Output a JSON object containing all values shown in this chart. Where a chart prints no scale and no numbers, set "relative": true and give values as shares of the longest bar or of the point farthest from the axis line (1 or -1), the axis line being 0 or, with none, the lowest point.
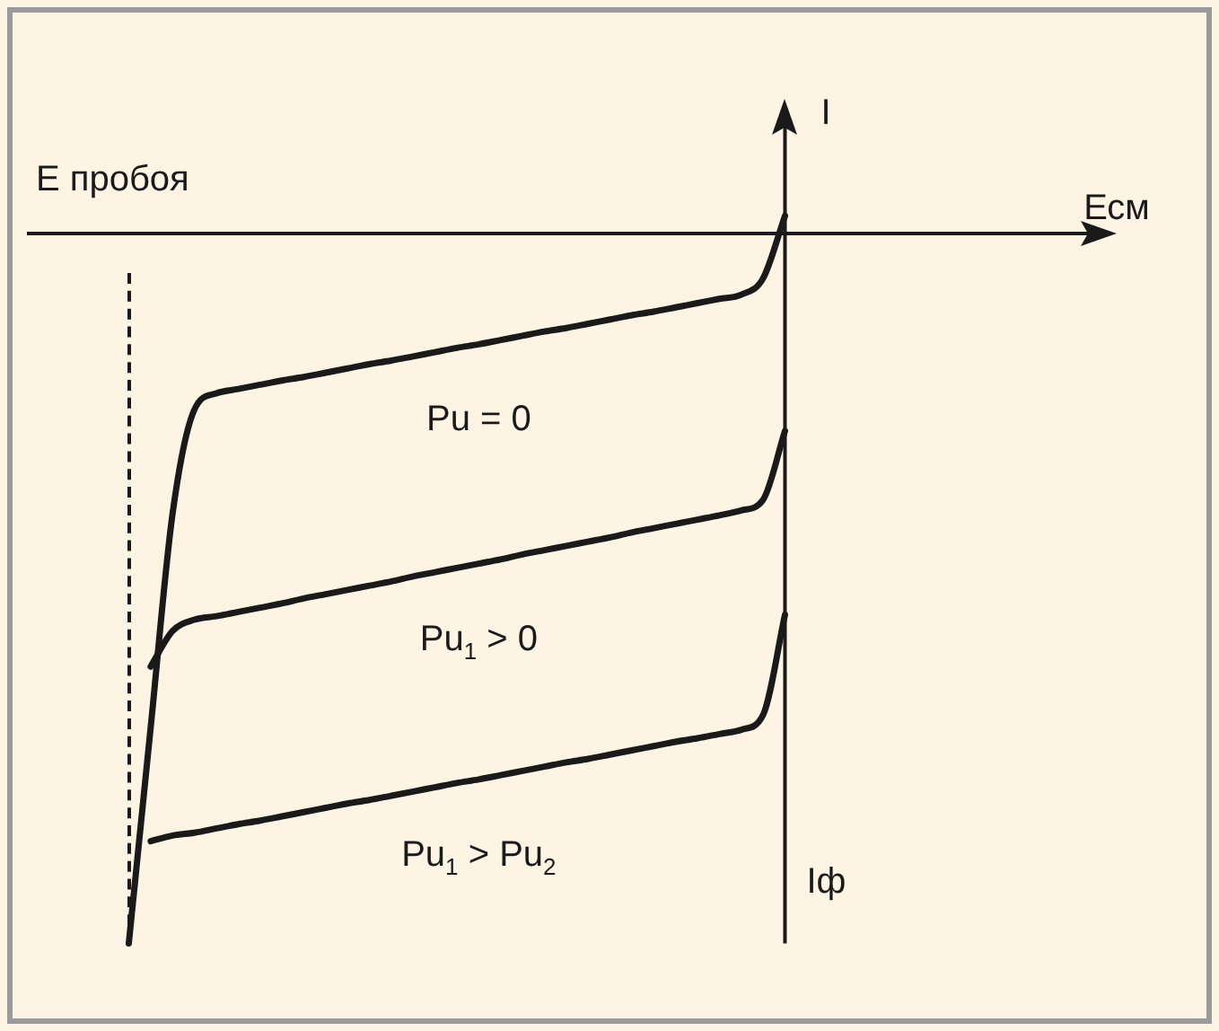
{
  "chart_data": {
    "type": "line",
    "relative": true,
    "xlabel": "Есм",
    "ylabel": "I",
    "annotations": [
      "Iф",
      "Е пробоя"
    ],
    "legend": false,
    "marker": "none",
    "line_style": "solid",
    "categories": [
      null,
      null,
      null,
      null,
      null,
      null,
      null,
      null,
      null,
      null,
      null,
      null,
      null,
      null,
      null,
      null,
      null,
      null,
      null,
      null,
      null,
      null,
      null,
      null,
      null,
      null,
      null,
      null,
      null,
      null,
      null,
      null,
      null,
      null,
      null,
      null,
      null,
      null,
      null,
      null,
      null,
      null,
      null,
      null,
      null,
      null,
      null,
      null,
      null,
      null
    ],
    "series": [
      {
        "name": "Pu = 0",
        "color": "#1a1a1a",
        "values": [
          null,
          null,
          null,
          null,
          -1,
          -0.696,
          -0.395,
          -0.248,
          -0.225,
          -0.219,
          -0.213,
          -0.207,
          -0.202,
          -0.196,
          -0.19,
          -0.184,
          -0.179,
          -0.173,
          -0.167,
          -0.161,
          -0.156,
          -0.15,
          -0.144,
          -0.138,
          -0.133,
          -0.127,
          -0.121,
          -0.115,
          -0.11,
          -0.104,
          -0.098,
          -0.092,
          -0.086,
          -0.063,
          0.025,
          null,
          null,
          null,
          null,
          null,
          null,
          null,
          null,
          null,
          null,
          null,
          null,
          null,
          null,
          null
        ]
      },
      {
        "name": "Pu$_{1}$ > 0",
        "color": "#1a1a1a",
        "values": [
          null,
          null,
          null,
          null,
          null,
          -0.61,
          -0.56,
          -0.544,
          -0.539,
          -0.533,
          -0.527,
          -0.521,
          -0.514,
          -0.508,
          -0.502,
          -0.496,
          -0.49,
          -0.483,
          -0.477,
          -0.471,
          -0.465,
          -0.459,
          -0.452,
          -0.446,
          -0.44,
          -0.434,
          -0.428,
          -0.421,
          -0.415,
          -0.409,
          -0.403,
          -0.397,
          -0.39,
          -0.375,
          -0.278,
          null,
          null,
          null,
          null,
          null,
          null,
          null,
          null,
          null,
          null,
          null,
          null,
          null,
          null,
          null
        ]
      },
      {
        "name": "Pu$_{1}$ > Pu$_{2}$",
        "color": "#1a1a1a",
        "values": [
          null,
          null,
          null,
          null,
          null,
          -0.856,
          -0.848,
          -0.844,
          -0.838,
          -0.832,
          -0.827,
          -0.821,
          -0.815,
          -0.809,
          -0.803,
          -0.798,
          -0.792,
          -0.786,
          -0.78,
          -0.774,
          -0.769,
          -0.763,
          -0.757,
          -0.751,
          -0.745,
          -0.74,
          -0.734,
          -0.728,
          -0.722,
          -0.716,
          -0.711,
          -0.705,
          -0.699,
          -0.678,
          -0.537,
          null,
          null,
          null,
          null,
          null,
          null,
          null,
          null,
          null,
          null,
          null,
          null,
          null,
          null,
          null
        ]
      }
    ]
  }
}
